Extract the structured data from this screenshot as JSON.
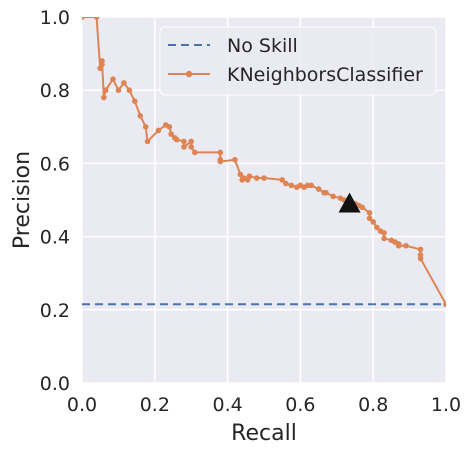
{
  "chart_data": {
    "type": "line",
    "xlabel": "Recall",
    "ylabel": "Precision",
    "xlim": [
      0.0,
      1.0
    ],
    "ylim": [
      0.0,
      1.0
    ],
    "x_ticks": [
      "0.0",
      "0.2",
      "0.4",
      "0.6",
      "0.8",
      "1.0"
    ],
    "y_ticks": [
      "0.0",
      "0.2",
      "0.4",
      "0.6",
      "0.8",
      "1.0"
    ],
    "grid": true,
    "background": "#eaeaf2",
    "legend_position": "top-right",
    "series": [
      {
        "name": "No Skill",
        "style": "dashed",
        "color": "#4c72b0",
        "points": [
          [
            0.0,
            0.215
          ],
          [
            1.0,
            0.215
          ]
        ]
      },
      {
        "name": "KNeighborsClassifier",
        "style": "line-with-markers",
        "color": "#dd8452",
        "points": [
          [
            0.0,
            1.0
          ],
          [
            0.04,
            1.0
          ],
          [
            0.05,
            0.86
          ],
          [
            0.055,
            0.87
          ],
          [
            0.055,
            0.88
          ],
          [
            0.06,
            0.78
          ],
          [
            0.065,
            0.8
          ],
          [
            0.085,
            0.83
          ],
          [
            0.1,
            0.8
          ],
          [
            0.115,
            0.82
          ],
          [
            0.13,
            0.8
          ],
          [
            0.145,
            0.77
          ],
          [
            0.16,
            0.73
          ],
          [
            0.175,
            0.7
          ],
          [
            0.18,
            0.66
          ],
          [
            0.21,
            0.69
          ],
          [
            0.23,
            0.705
          ],
          [
            0.24,
            0.7
          ],
          [
            0.245,
            0.68
          ],
          [
            0.255,
            0.67
          ],
          [
            0.26,
            0.665
          ],
          [
            0.28,
            0.66
          ],
          [
            0.28,
            0.645
          ],
          [
            0.3,
            0.66
          ],
          [
            0.3,
            0.645
          ],
          [
            0.31,
            0.63
          ],
          [
            0.38,
            0.63
          ],
          [
            0.38,
            0.61
          ],
          [
            0.38,
            0.605
          ],
          [
            0.42,
            0.61
          ],
          [
            0.435,
            0.57
          ],
          [
            0.44,
            0.555
          ],
          [
            0.445,
            0.56
          ],
          [
            0.455,
            0.555
          ],
          [
            0.46,
            0.565
          ],
          [
            0.48,
            0.56
          ],
          [
            0.5,
            0.56
          ],
          [
            0.55,
            0.555
          ],
          [
            0.56,
            0.545
          ],
          [
            0.575,
            0.54
          ],
          [
            0.59,
            0.535
          ],
          [
            0.6,
            0.54
          ],
          [
            0.61,
            0.535
          ],
          [
            0.62,
            0.54
          ],
          [
            0.63,
            0.54
          ],
          [
            0.65,
            0.53
          ],
          [
            0.665,
            0.52
          ],
          [
            0.67,
            0.52
          ],
          [
            0.69,
            0.51
          ],
          [
            0.71,
            0.505
          ],
          [
            0.72,
            0.5
          ],
          [
            0.73,
            0.5
          ],
          [
            0.75,
            0.49
          ],
          [
            0.76,
            0.485
          ],
          [
            0.77,
            0.48
          ],
          [
            0.79,
            0.465
          ],
          [
            0.79,
            0.45
          ],
          [
            0.8,
            0.44
          ],
          [
            0.81,
            0.425
          ],
          [
            0.82,
            0.415
          ],
          [
            0.83,
            0.41
          ],
          [
            0.83,
            0.395
          ],
          [
            0.85,
            0.39
          ],
          [
            0.86,
            0.385
          ],
          [
            0.87,
            0.38
          ],
          [
            0.87,
            0.375
          ],
          [
            0.89,
            0.375
          ],
          [
            0.93,
            0.365
          ],
          [
            0.93,
            0.35
          ],
          [
            0.93,
            0.34
          ],
          [
            1.0,
            0.215
          ]
        ]
      }
    ],
    "annotations": [
      {
        "type": "triangle-marker",
        "color": "#111111",
        "x": 0.735,
        "y": 0.49
      }
    ]
  }
}
